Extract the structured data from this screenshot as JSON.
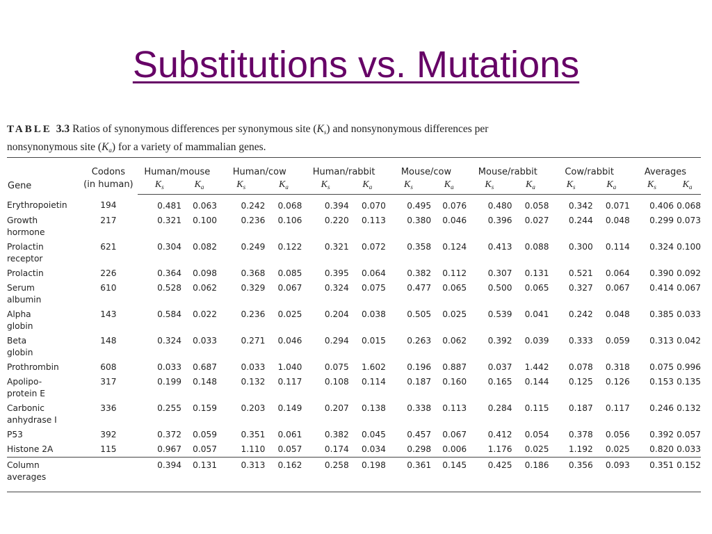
{
  "title": "Substitutions vs. Mutations",
  "caption": {
    "label": "TABLE",
    "number": "3.3",
    "text_before_ks": "Ratios of synonymous differences per synonymous site (",
    "ks_symbol": "K",
    "ks_sub": "s",
    "text_between": ") and nonsynonymous differences per nonsynonymous site (",
    "ka_symbol": "K",
    "ka_sub": "a",
    "text_after": ") for a variety of mammalian genes."
  },
  "table": {
    "header_gene": "Gene",
    "header_codons_line1": "Codons",
    "header_codons_line2": "(in human)",
    "groups": [
      "Human/mouse",
      "Human/cow",
      "Human/rabbit",
      "Mouse/cow",
      "Mouse/rabbit",
      "Cow/rabbit",
      "Averages"
    ],
    "sub_ks": "K",
    "sub_ks_sub": "s",
    "sub_ka": "K",
    "sub_ka_sub": "a",
    "rows": [
      {
        "gene": [
          "Erythropoietin"
        ],
        "codons": "194",
        "values": [
          "0.481",
          "0.063",
          "0.242",
          "0.068",
          "0.394",
          "0.070",
          "0.495",
          "0.076",
          "0.480",
          "0.058",
          "0.342",
          "0.071",
          "0.406",
          "0.068"
        ]
      },
      {
        "gene": [
          "Growth",
          "hormone"
        ],
        "codons": "217",
        "values": [
          "0.321",
          "0.100",
          "0.236",
          "0.106",
          "0.220",
          "0.113",
          "0.380",
          "0.046",
          "0.396",
          "0.027",
          "0.244",
          "0.048",
          "0.299",
          "0.073"
        ]
      },
      {
        "gene": [
          "Prolactin",
          "receptor"
        ],
        "codons": "621",
        "values": [
          "0.304",
          "0.082",
          "0.249",
          "0.122",
          "0.321",
          "0.072",
          "0.358",
          "0.124",
          "0.413",
          "0.088",
          "0.300",
          "0.114",
          "0.324",
          "0.100"
        ]
      },
      {
        "gene": [
          "Prolactin"
        ],
        "codons": "226",
        "values": [
          "0.364",
          "0.098",
          "0.368",
          "0.085",
          "0.395",
          "0.064",
          "0.382",
          "0.112",
          "0.307",
          "0.131",
          "0.521",
          "0.064",
          "0.390",
          "0.092"
        ]
      },
      {
        "gene": [
          "Serum",
          "albumin"
        ],
        "codons": "610",
        "values": [
          "0.528",
          "0.062",
          "0.329",
          "0.067",
          "0.324",
          "0.075",
          "0.477",
          "0.065",
          "0.500",
          "0.065",
          "0.327",
          "0.067",
          "0.414",
          "0.067"
        ]
      },
      {
        "gene": [
          "Alpha",
          "globin"
        ],
        "codons": "143",
        "values": [
          "0.584",
          "0.022",
          "0.236",
          "0.025",
          "0.204",
          "0.038",
          "0.505",
          "0.025",
          "0.539",
          "0.041",
          "0.242",
          "0.048",
          "0.385",
          "0.033"
        ]
      },
      {
        "gene": [
          "Beta",
          "globin"
        ],
        "codons": "148",
        "values": [
          "0.324",
          "0.033",
          "0.271",
          "0.046",
          "0.294",
          "0.015",
          "0.263",
          "0.062",
          "0.392",
          "0.039",
          "0.333",
          "0.059",
          "0.313",
          "0.042"
        ]
      },
      {
        "gene": [
          "Prothrombin"
        ],
        "codons": "608",
        "values": [
          "0.033",
          "0.687",
          "0.033",
          "1.040",
          "0.075",
          "1.602",
          "0.196",
          "0.887",
          "0.037",
          "1.442",
          "0.078",
          "0.318",
          "0.075",
          "0.996"
        ]
      },
      {
        "gene": [
          "Apolipo-",
          "protein E"
        ],
        "codons": "317",
        "values": [
          "0.199",
          "0.148",
          "0.132",
          "0.117",
          "0.108",
          "0.114",
          "0.187",
          "0.160",
          "0.165",
          "0.144",
          "0.125",
          "0.126",
          "0.153",
          "0.135"
        ]
      },
      {
        "gene": [
          "Carbonic",
          "anhydrase I"
        ],
        "codons": "336",
        "values": [
          "0.255",
          "0.159",
          "0.203",
          "0.149",
          "0.207",
          "0.138",
          "0.338",
          "0.113",
          "0.284",
          "0.115",
          "0.187",
          "0.117",
          "0.246",
          "0.132"
        ]
      },
      {
        "gene": [
          "P53"
        ],
        "codons": "392",
        "values": [
          "0.372",
          "0.059",
          "0.351",
          "0.061",
          "0.382",
          "0.045",
          "0.457",
          "0.067",
          "0.412",
          "0.054",
          "0.378",
          "0.056",
          "0.392",
          "0.057"
        ]
      },
      {
        "gene": [
          "Histone 2A"
        ],
        "codons": "115",
        "values": [
          "0.967",
          "0.057",
          "1.110",
          "0.057",
          "0.174",
          "0.034",
          "0.298",
          "0.006",
          "1.176",
          "0.025",
          "1.192",
          "0.025",
          "0.820",
          "0.033"
        ]
      }
    ],
    "average_row": {
      "gene": [
        "Column",
        "averages"
      ],
      "codons": "",
      "values": [
        "0.394",
        "0.131",
        "0.313",
        "0.162",
        "0.258",
        "0.198",
        "0.361",
        "0.145",
        "0.425",
        "0.186",
        "0.356",
        "0.093",
        "0.351",
        "0.152"
      ]
    }
  }
}
